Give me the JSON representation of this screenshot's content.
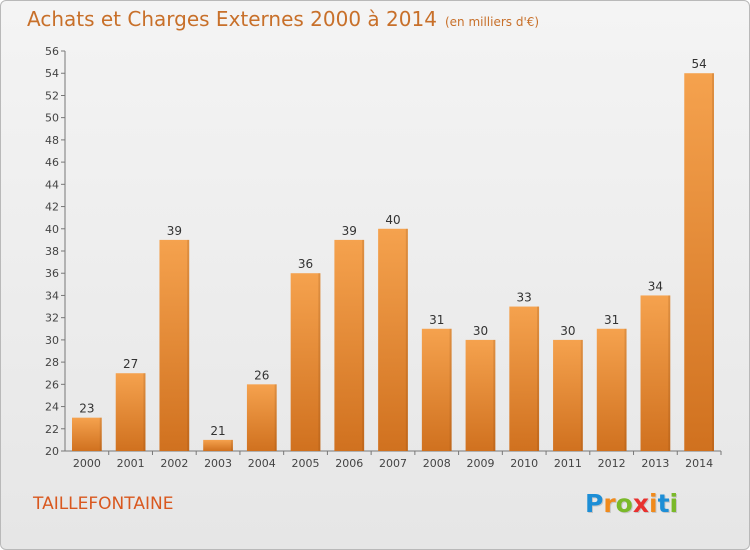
{
  "title": "Achats et Charges Externes 2000 à 2014",
  "subtitle": "(en milliers d'€)",
  "location": "TAILLEFONTAINE",
  "logo": {
    "text": "Proxiti",
    "letters": [
      "P",
      "r",
      "o",
      "x",
      "i",
      "t",
      "i"
    ],
    "colors": [
      "#1d8ed6",
      "#f08a1c",
      "#7ab929",
      "#e8312f",
      "#f08a1c",
      "#1d8ed6",
      "#7ab929"
    ]
  },
  "colors": {
    "bar_top": "#f5a24e",
    "bar_bottom": "#d0711f",
    "title": "#c8702a",
    "location": "#d9581f"
  },
  "chart_data": {
    "type": "bar",
    "categories": [
      "2000",
      "2001",
      "2002",
      "2003",
      "2004",
      "2005",
      "2006",
      "2007",
      "2008",
      "2009",
      "2010",
      "2011",
      "2012",
      "2013",
      "2014"
    ],
    "values": [
      23,
      27,
      39,
      21,
      26,
      36,
      39,
      40,
      31,
      30,
      33,
      30,
      31,
      34,
      54
    ],
    "ylim": [
      20,
      56
    ],
    "yticks": [
      20,
      22,
      24,
      26,
      28,
      30,
      32,
      34,
      36,
      38,
      40,
      42,
      44,
      46,
      48,
      50,
      52,
      54,
      56
    ],
    "grid": false,
    "legend": "none"
  }
}
